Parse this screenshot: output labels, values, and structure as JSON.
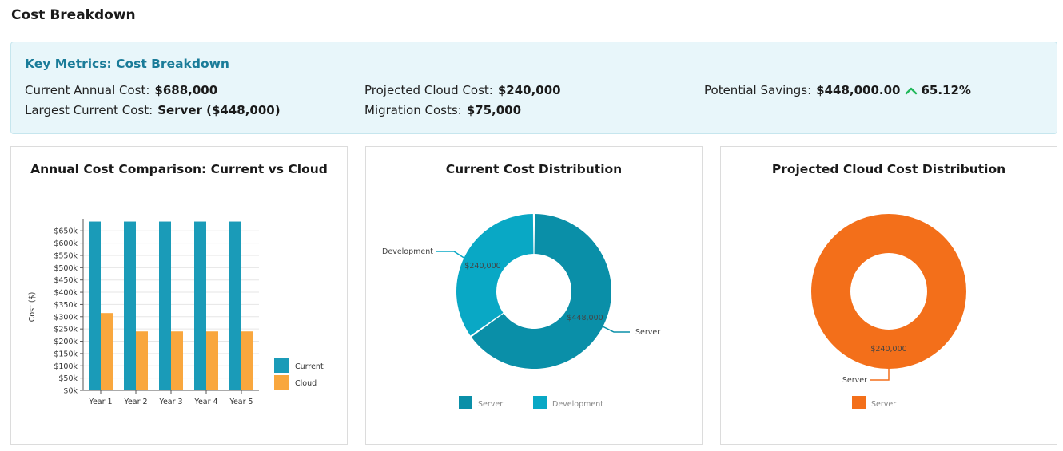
{
  "page": {
    "title": "Cost Breakdown"
  },
  "metrics": {
    "title": "Key Metrics: Cost Breakdown",
    "current_annual_cost": {
      "label": "Current Annual Cost:",
      "value": "$688,000"
    },
    "largest_current_cost": {
      "label": "Largest Current Cost:",
      "value": "Server ($448,000)"
    },
    "projected_cloud_cost": {
      "label": "Projected Cloud Cost:",
      "value": "$240,000"
    },
    "migration_costs": {
      "label": "Migration Costs:",
      "value": "$75,000"
    },
    "potential_savings": {
      "label": "Potential Savings:",
      "value": "$448,000.00",
      "percent": "65.12%",
      "trend": "up-arrow-icon",
      "trend_color": "#22b85a"
    }
  },
  "chart_data": [
    {
      "type": "bar",
      "title": "Annual Cost Comparison: Current vs Cloud",
      "ylabel": "Cost ($)",
      "xlabel": "",
      "categories": [
        "Year 1",
        "Year 2",
        "Year 3",
        "Year 4",
        "Year 5"
      ],
      "ylim": [
        0,
        680000
      ],
      "y_ticks": [
        0,
        50000,
        100000,
        150000,
        200000,
        250000,
        300000,
        350000,
        400000,
        450000,
        500000,
        550000,
        600000,
        650000
      ],
      "y_tick_labels": [
        "$0k",
        "$50k",
        "$100k",
        "$150k",
        "$200k",
        "$250k",
        "$300k",
        "$350k",
        "$400k",
        "$450k",
        "$500k",
        "$550k",
        "$600k",
        "$650k"
      ],
      "grid": true,
      "legend_position": "right",
      "series": [
        {
          "name": "Current",
          "values": [
            688000,
            688000,
            688000,
            688000,
            688000
          ],
          "color": "#1a9bb8"
        },
        {
          "name": "Cloud",
          "values": [
            315000,
            240000,
            240000,
            240000,
            240000
          ],
          "color": "#f9a73e"
        }
      ]
    },
    {
      "type": "pie",
      "title": "Current Cost Distribution",
      "legend_position": "bottom",
      "slices": [
        {
          "name": "Server",
          "value": 448000,
          "label": "$448,000",
          "color": "#0a8fa8"
        },
        {
          "name": "Development",
          "value": 240000,
          "label": "$240,000",
          "color": "#09a8c5"
        }
      ]
    },
    {
      "type": "pie",
      "title": "Projected Cloud Cost Distribution",
      "legend_position": "bottom",
      "slices": [
        {
          "name": "Server",
          "value": 240000,
          "label": "$240,000",
          "color": "#f36f1a"
        }
      ]
    }
  ]
}
